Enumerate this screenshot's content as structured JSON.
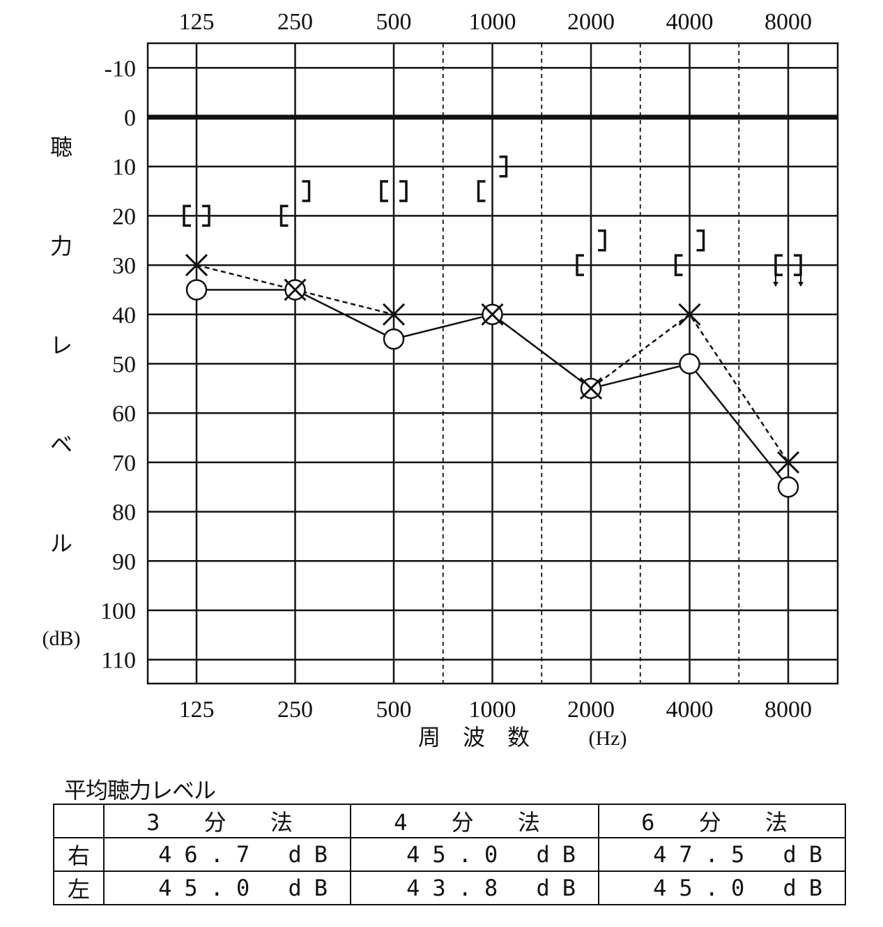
{
  "chart_data": {
    "type": "line",
    "frequencies": [
      "125",
      "250",
      "500",
      "1000",
      "2000",
      "4000",
      "8000"
    ],
    "xlabel": "周　波　数",
    "xunit": "(Hz)",
    "ylabel_chars": [
      "聴",
      "力",
      "レ",
      "ベ",
      "ル"
    ],
    "yunit": "(dB)",
    "yticks": [
      "-10",
      "0",
      "10",
      "20",
      "30",
      "40",
      "50",
      "60",
      "70",
      "80",
      "90",
      "100",
      "110"
    ],
    "ylim": [
      -15,
      115
    ],
    "y_inverted": true,
    "series": [
      {
        "marker": "circle",
        "line": "solid",
        "values": [
          35,
          35,
          45,
          40,
          55,
          50,
          75
        ]
      },
      {
        "marker": "cross",
        "line": "dashed",
        "values": [
          30,
          35,
          40,
          40,
          55,
          40,
          70
        ]
      },
      {
        "marker": "bracket-left",
        "values": [
          20,
          20,
          15,
          15,
          30,
          30,
          30
        ],
        "no_response": [
          false,
          false,
          false,
          false,
          false,
          false,
          true
        ]
      },
      {
        "marker": "bracket-right",
        "values": [
          20,
          15,
          15,
          10,
          25,
          25,
          30
        ],
        "no_response": [
          false,
          false,
          false,
          false,
          false,
          false,
          true
        ]
      }
    ]
  },
  "average": {
    "caption": "平均聴力レベル",
    "headers": [
      "3 分 法",
      "4 分 法",
      "6 分 法"
    ],
    "rows": [
      {
        "label": "右",
        "values": [
          "46.7 dB",
          "45.0 dB",
          "47.5 dB"
        ]
      },
      {
        "label": "左",
        "values": [
          "45.0 dB",
          "43.8 dB",
          "45.0 dB"
        ]
      }
    ]
  }
}
